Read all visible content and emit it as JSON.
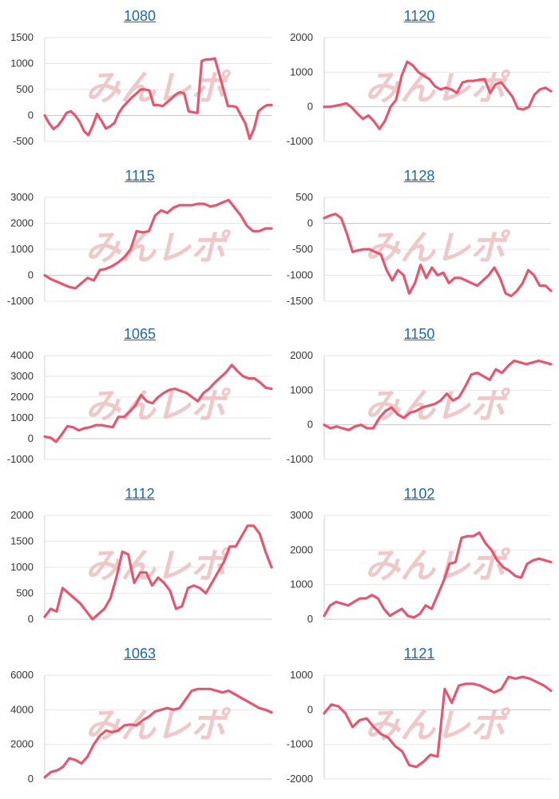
{
  "watermark": "みんレポ",
  "colors": {
    "line": "#e5566f",
    "title_link": "#1a66b5",
    "grid": "#e6e6e6"
  },
  "chart_data": [
    {
      "type": "line",
      "title": "1080",
      "ylim": [
        -500,
        1500
      ],
      "yticks": [
        1500,
        1000,
        500,
        0,
        -500
      ],
      "grid": true,
      "values": [
        0,
        -150,
        -260,
        -200,
        -90,
        50,
        80,
        0,
        -120,
        -300,
        -380,
        -200,
        30,
        -100,
        -250,
        -210,
        -140,
        50,
        170,
        260,
        350,
        420,
        500,
        500,
        480,
        200,
        200,
        180,
        250,
        320,
        400,
        450,
        420,
        80,
        60,
        50,
        1050,
        1080,
        1080,
        1100,
        800,
        500,
        180,
        180,
        160,
        0,
        -150,
        -450,
        -250,
        80,
        150,
        200,
        200
      ]
    },
    {
      "type": "line",
      "title": "1120",
      "ylim": [
        -1000,
        2000
      ],
      "yticks": [
        2000,
        1000,
        0,
        -1000
      ],
      "grid": true,
      "values": [
        0,
        0,
        30,
        60,
        100,
        -20,
        -200,
        -350,
        -250,
        -420,
        -640,
        -400,
        0,
        200,
        900,
        1300,
        1200,
        1000,
        900,
        800,
        600,
        500,
        550,
        500,
        400,
        700,
        750,
        750,
        780,
        800,
        400,
        650,
        700,
        500,
        300,
        -50,
        -80,
        0,
        350,
        500,
        550,
        450
      ]
    },
    {
      "type": "line",
      "title": "1115",
      "ylim": [
        -1000,
        3000
      ],
      "yticks": [
        3000,
        2000,
        1000,
        0,
        -1000
      ],
      "grid": true,
      "values": [
        0,
        -150,
        -250,
        -350,
        -450,
        -500,
        -300,
        -100,
        -200,
        200,
        250,
        350,
        500,
        700,
        1000,
        1700,
        1650,
        1700,
        2300,
        2500,
        2400,
        2600,
        2700,
        2700,
        2700,
        2750,
        2750,
        2650,
        2700,
        2800,
        2900,
        2600,
        2300,
        1900,
        1700,
        1700,
        1800,
        1800
      ]
    },
    {
      "type": "line",
      "title": "1128",
      "ylim": [
        -1500,
        500
      ],
      "yticks": [
        500,
        0,
        -500,
        -1000,
        -1500
      ],
      "grid": true,
      "values": [
        100,
        150,
        180,
        100,
        -200,
        -550,
        -520,
        -500,
        -500,
        -550,
        -600,
        -900,
        -1100,
        -900,
        -1000,
        -1350,
        -1150,
        -800,
        -1050,
        -850,
        -1000,
        -950,
        -1150,
        -1050,
        -1050,
        -1100,
        -1150,
        -1200,
        -1100,
        -1000,
        -850,
        -1050,
        -1350,
        -1400,
        -1300,
        -1150,
        -900,
        -1000,
        -1200,
        -1200,
        -1300
      ]
    },
    {
      "type": "line",
      "title": "1065",
      "ylim": [
        -1000,
        4000
      ],
      "yticks": [
        4000,
        3000,
        2000,
        1000,
        0,
        -1000
      ],
      "grid": true,
      "values": [
        100,
        50,
        -150,
        200,
        600,
        550,
        400,
        500,
        550,
        650,
        650,
        600,
        550,
        1050,
        1050,
        1300,
        1600,
        2100,
        1800,
        1700,
        2000,
        2200,
        2350,
        2400,
        2300,
        2200,
        2000,
        1800,
        2200,
        2400,
        2700,
        2950,
        3200,
        3550,
        3250,
        3000,
        2900,
        2900,
        2700,
        2450,
        2400
      ]
    },
    {
      "type": "line",
      "title": "1150",
      "ylim": [
        -1000,
        2000
      ],
      "yticks": [
        2000,
        1000,
        0,
        -1000
      ],
      "grid": true,
      "values": [
        0,
        -100,
        -50,
        -100,
        -150,
        -50,
        0,
        -100,
        -100,
        200,
        400,
        500,
        300,
        200,
        350,
        400,
        500,
        550,
        600,
        700,
        900,
        700,
        800,
        1100,
        1450,
        1500,
        1400,
        1300,
        1600,
        1500,
        1700,
        1850,
        1800,
        1750,
        1800,
        1850,
        1800,
        1750
      ]
    },
    {
      "type": "line",
      "title": "1112",
      "ylim": [
        0,
        2000
      ],
      "yticks": [
        2000,
        1500,
        1000,
        500,
        0
      ],
      "grid": true,
      "values": [
        50,
        200,
        150,
        600,
        500,
        400,
        300,
        150,
        0,
        100,
        200,
        400,
        800,
        1300,
        1250,
        700,
        900,
        900,
        650,
        800,
        700,
        550,
        200,
        250,
        600,
        650,
        600,
        500,
        700,
        900,
        1100,
        1400,
        1400,
        1600,
        1800,
        1800,
        1650,
        1300,
        1000
      ]
    },
    {
      "type": "line",
      "title": "1102",
      "ylim": [
        0,
        3000
      ],
      "yticks": [
        3000,
        2000,
        1000,
        0
      ],
      "grid": true,
      "values": [
        100,
        400,
        500,
        450,
        400,
        500,
        600,
        600,
        700,
        600,
        300,
        100,
        200,
        300,
        100,
        50,
        150,
        400,
        300,
        700,
        1100,
        1600,
        1650,
        2350,
        2400,
        2400,
        2500,
        2200,
        2000,
        1700,
        1500,
        1400,
        1250,
        1200,
        1600,
        1700,
        1750,
        1700,
        1650
      ]
    },
    {
      "type": "line",
      "title": "1063",
      "ylim": [
        0,
        6000
      ],
      "yticks": [
        6000,
        4000,
        2000,
        0
      ],
      "grid": true,
      "values": [
        100,
        400,
        500,
        700,
        1200,
        1100,
        900,
        1300,
        2000,
        2500,
        2800,
        2700,
        2800,
        3100,
        3150,
        3100,
        3400,
        3600,
        3900,
        4000,
        4100,
        4000,
        4100,
        4600,
        5100,
        5200,
        5200,
        5200,
        5100,
        5000,
        5100,
        4900,
        4700,
        4500,
        4300,
        4100,
        4000,
        3850
      ]
    },
    {
      "type": "line",
      "title": "1121",
      "ylim": [
        -2000,
        1000
      ],
      "yticks": [
        1000,
        0,
        -1000,
        -2000
      ],
      "grid": true,
      "values": [
        -100,
        150,
        100,
        -100,
        -500,
        -300,
        -250,
        -500,
        -700,
        -800,
        -1050,
        -1200,
        -1600,
        -1650,
        -1500,
        -1300,
        -1350,
        600,
        200,
        700,
        750,
        750,
        700,
        600,
        500,
        600,
        950,
        900,
        950,
        900,
        800,
        700,
        550
      ]
    }
  ]
}
